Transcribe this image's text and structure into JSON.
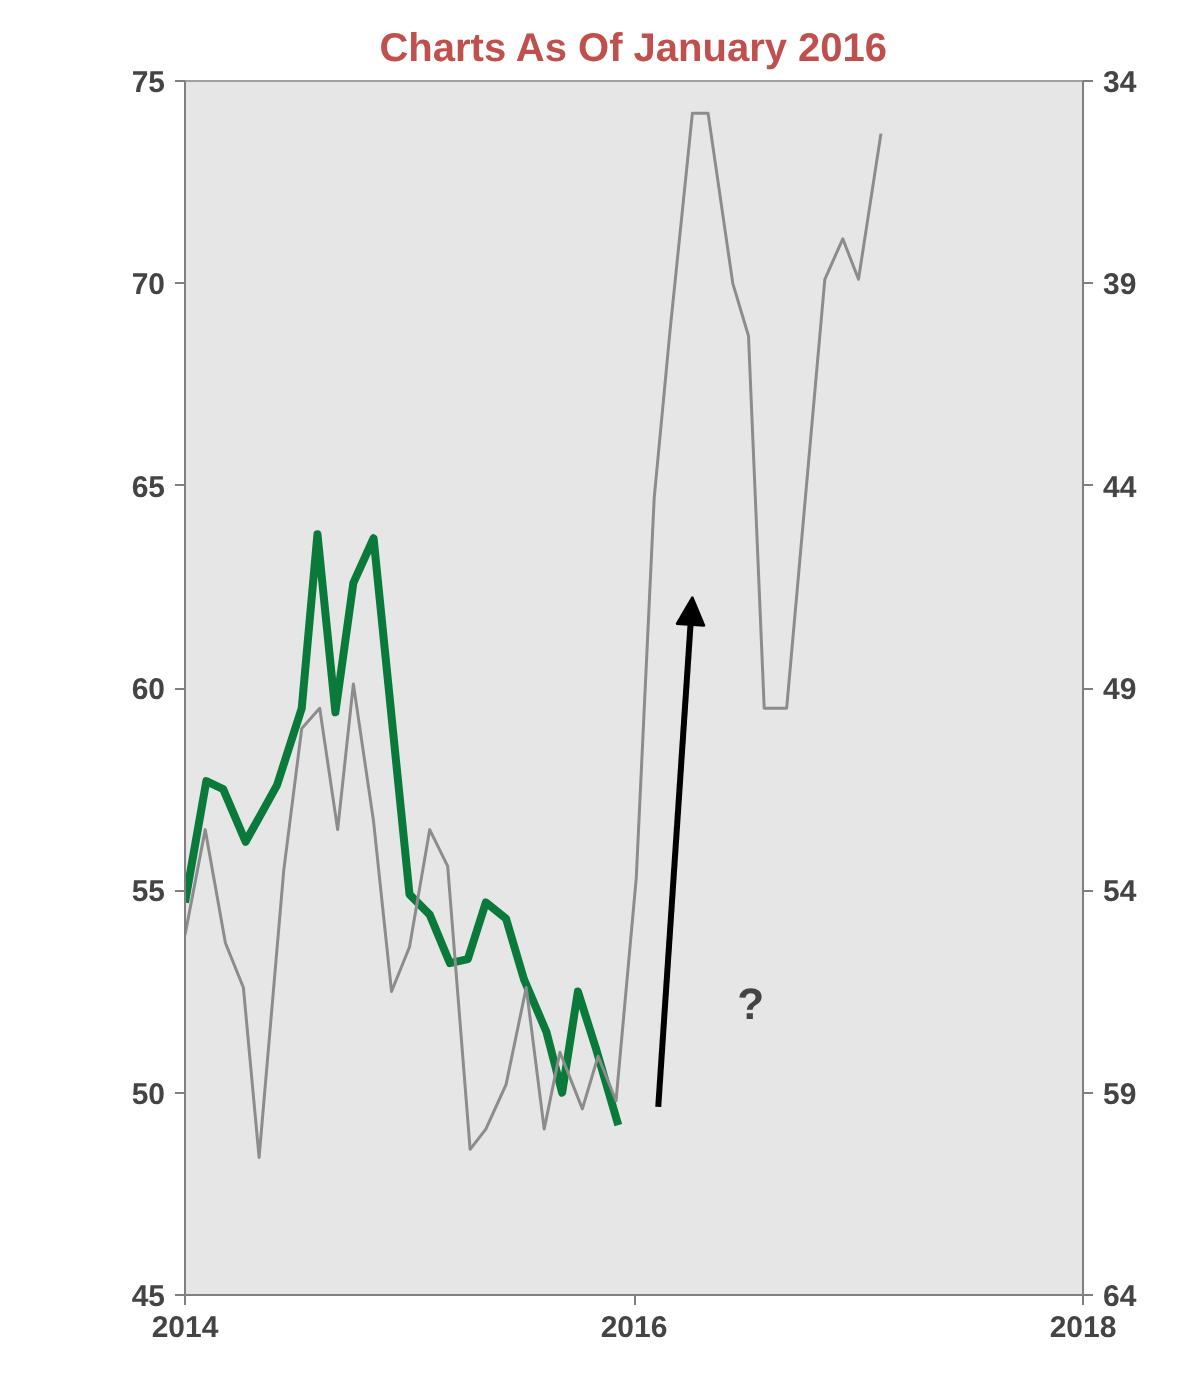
{
  "chart_data": {
    "type": "line",
    "title": "Charts As Of January 2016",
    "x": [
      2014.0,
      2014.095,
      2014.17,
      2014.27,
      2014.41,
      2014.52,
      2014.59,
      2014.67,
      2014.75,
      2014.84,
      2015.0,
      2015.09,
      2015.18,
      2015.26,
      2015.34,
      2015.43,
      2015.51,
      2015.61,
      2015.68,
      2015.75,
      2015.83,
      2015.93
    ],
    "series": [
      {
        "color": "#0a7a3a",
        "values": [
          54.7,
          57.7,
          57.5,
          56.2,
          57.6,
          59.5,
          63.8,
          59.4,
          62.6,
          63.7,
          54.9,
          54.4,
          53.2,
          53.3,
          54.7,
          54.3,
          52.8,
          51.5,
          50.0,
          52.5,
          51.1,
          49.2
        ]
      },
      {
        "color": "#8c8c8c",
        "axis": "y2",
        "x": [
          2014.0,
          2014.09,
          2014.18,
          2014.26,
          2014.33,
          2014.44,
          2014.52,
          2014.6,
          2014.68,
          2014.75,
          2014.84,
          2014.92,
          2015.0,
          2015.09,
          2015.17,
          2015.27,
          2015.34,
          2015.43,
          2015.52,
          2015.6,
          2015.67,
          2015.77,
          2015.84,
          2015.92,
          2016.01,
          2016.09,
          2016.16,
          2016.26,
          2016.33,
          2016.44,
          2016.51,
          2016.58,
          2016.68,
          2016.85,
          2016.93,
          2017.0,
          2017.1
        ],
        "values": [
          55.1,
          52.5,
          55.3,
          56.4,
          60.6,
          53.5,
          50.0,
          49.5,
          52.5,
          48.9,
          52.3,
          56.5,
          55.4,
          52.5,
          53.4,
          60.4,
          59.9,
          58.8,
          56.4,
          59.9,
          58.0,
          59.4,
          58.1,
          59.2,
          53.7,
          44.3,
          40.2,
          34.8,
          34.8,
          39.0,
          40.3,
          49.5,
          49.5,
          38.9,
          37.9,
          38.9,
          35.3
        ]
      }
    ],
    "xlim": [
      2014,
      2018
    ],
    "xticks": [
      2014,
      2016,
      2018
    ],
    "ylim": [
      45,
      75
    ],
    "yticks": [
      45,
      50,
      55,
      60,
      65,
      70,
      75
    ],
    "y2lim": [
      64,
      34
    ],
    "y2ticks": [
      34,
      39,
      44,
      49,
      54,
      59,
      64
    ],
    "annotations": [
      "?"
    ],
    "grid": false
  }
}
